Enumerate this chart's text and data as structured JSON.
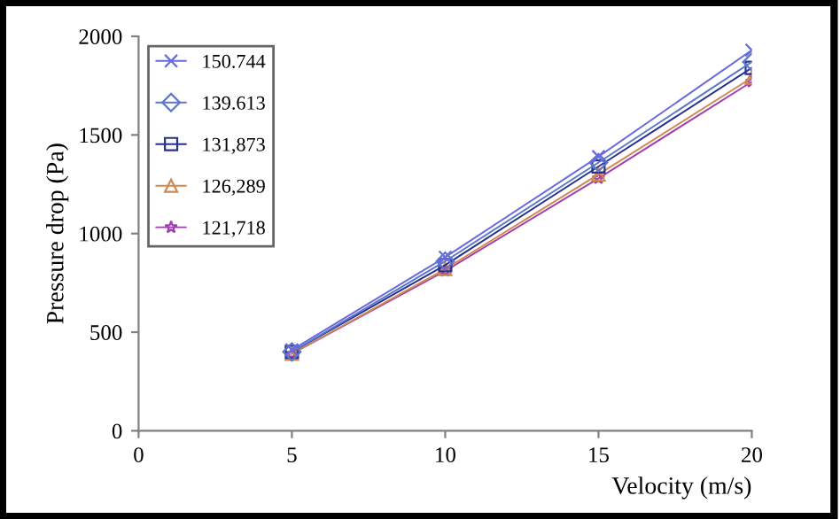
{
  "chart_data": {
    "type": "line",
    "xlabel": "Velocity (m/s)",
    "ylabel": "Pressure drop (Pa)",
    "x": [
      5,
      10,
      15,
      20
    ],
    "xlim": [
      0,
      20
    ],
    "xticks": [
      0,
      5,
      10,
      15,
      20
    ],
    "ylim": [
      0,
      2000
    ],
    "yticks": [
      0,
      500,
      1000,
      1500,
      2000
    ],
    "grid": false,
    "legend": "top left",
    "series": [
      {
        "name": "150.744",
        "color": "#6a6ae0",
        "marker": "cross",
        "values": [
          410,
          880,
          1390,
          1930
        ]
      },
      {
        "name": "139.613",
        "color": "#5a78c8",
        "marker": "diamond",
        "values": [
          400,
          860,
          1360,
          1870
        ]
      },
      {
        "name": "131,873",
        "color": "#283090",
        "marker": "square",
        "values": [
          400,
          840,
          1340,
          1840
        ]
      },
      {
        "name": "126,289",
        "color": "#d08850",
        "marker": "triangle",
        "values": [
          390,
          820,
          1300,
          1790
        ]
      },
      {
        "name": "121,718",
        "color": "#a040b0",
        "marker": "star",
        "values": [
          390,
          810,
          1280,
          1770
        ]
      }
    ]
  }
}
